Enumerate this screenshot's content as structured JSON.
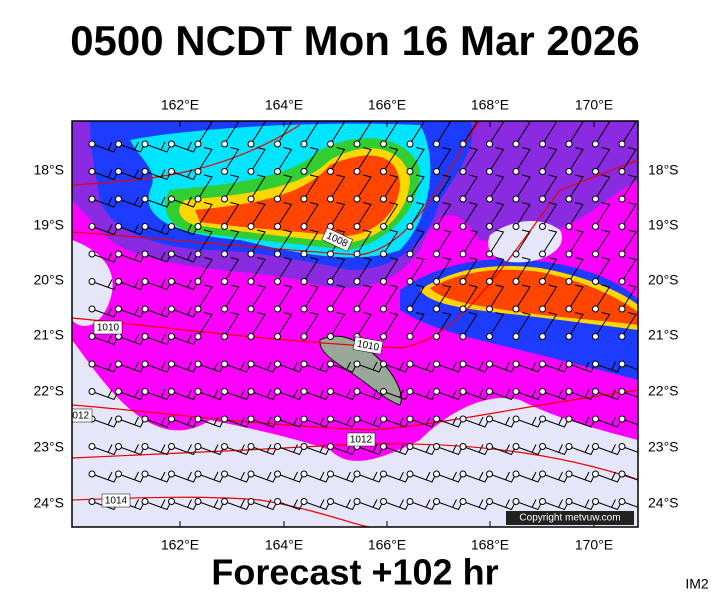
{
  "title": "0500 NCDT Mon 16 Mar 2026",
  "map": {
    "lon_labels": [
      "162°E",
      "164°E",
      "166°E",
      "168°E",
      "170°E"
    ],
    "lat_labels": [
      "18°S",
      "19°S",
      "20°S",
      "21°S",
      "22°S",
      "23°S",
      "24°S"
    ],
    "isobar_labels": [
      "1008",
      "1010",
      "1010",
      "1012",
      "1012",
      "1014"
    ],
    "copyright": "Copyright metvuw.com"
  },
  "footer": "Forecast +102 hr",
  "corner_label": "IM2"
}
